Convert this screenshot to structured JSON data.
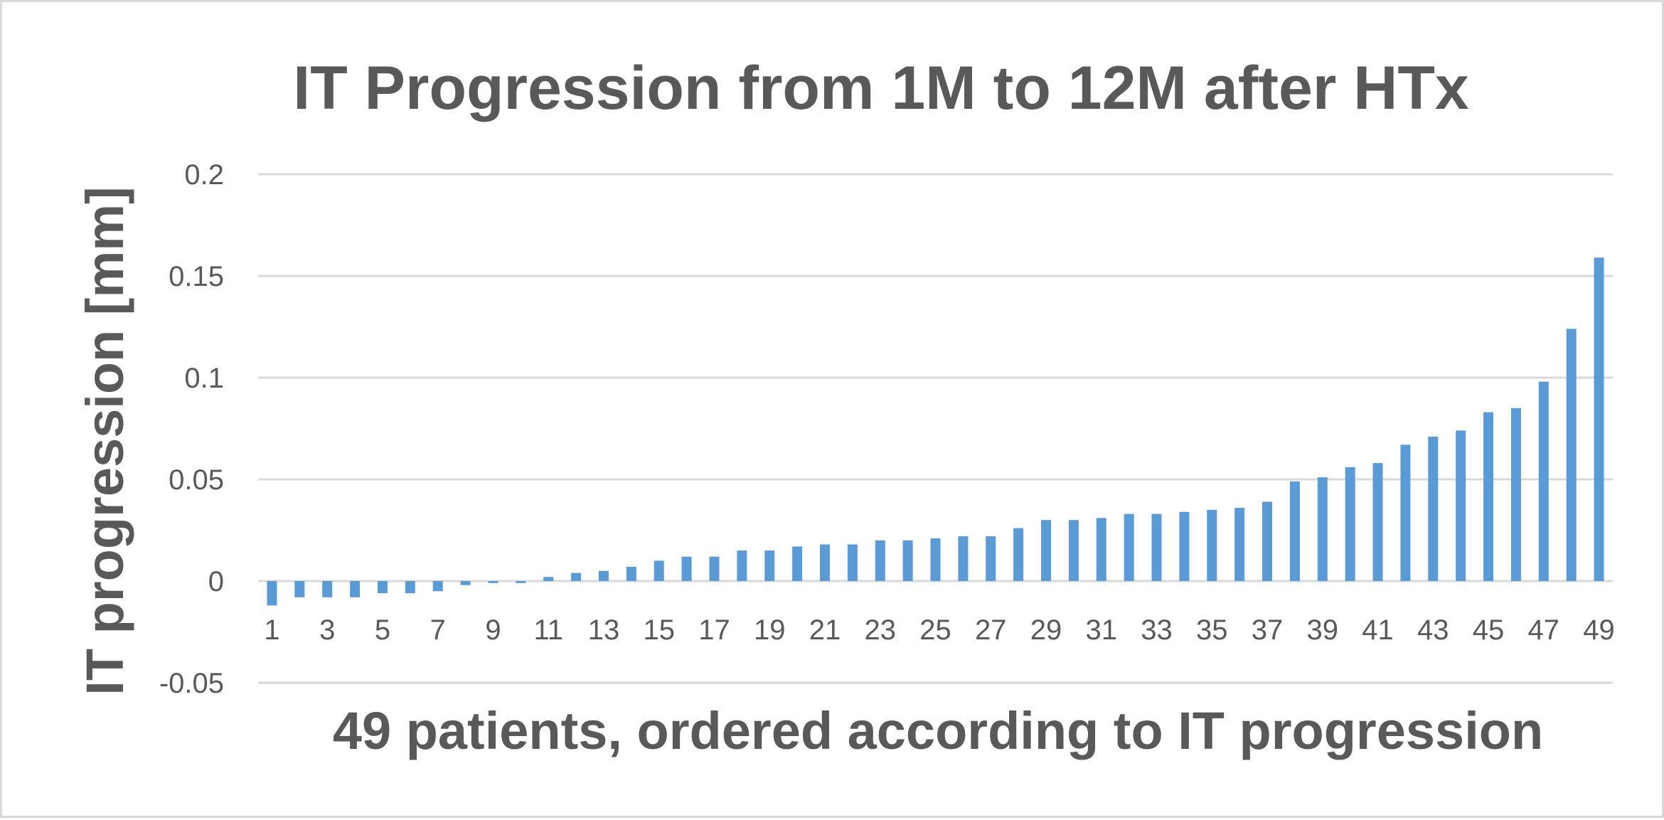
{
  "chart_data": {
    "type": "bar",
    "title": "IT  Progression from 1M to 12M after HTx",
    "xlabel": "49 patients, ordered according to IT progression",
    "ylabel": "IT progression [mm]",
    "ylim": [
      -0.05,
      0.2
    ],
    "yticks": [
      0.2,
      0.15,
      0.1,
      0.05,
      0,
      -0.05
    ],
    "ytick_labels": [
      "0.2",
      "0.15",
      "0.1",
      "0.05",
      "0",
      "-0.05"
    ],
    "grid": true,
    "legend": "none",
    "bar_color": "#5b9bd5",
    "categories": [
      "1",
      "2",
      "3",
      "4",
      "5",
      "6",
      "7",
      "8",
      "9",
      "10",
      "11",
      "12",
      "13",
      "14",
      "15",
      "16",
      "17",
      "18",
      "19",
      "20",
      "21",
      "22",
      "23",
      "24",
      "25",
      "26",
      "27",
      "28",
      "29",
      "30",
      "31",
      "32",
      "33",
      "34",
      "35",
      "36",
      "37",
      "38",
      "39",
      "40",
      "41",
      "42",
      "43",
      "44",
      "45",
      "46",
      "47",
      "48",
      "49"
    ],
    "x_tick_labels": [
      "1",
      "3",
      "5",
      "7",
      "9",
      "11",
      "13",
      "15",
      "17",
      "19",
      "21",
      "23",
      "25",
      "27",
      "29",
      "31",
      "33",
      "35",
      "37",
      "39",
      "41",
      "43",
      "45",
      "47",
      "49"
    ],
    "values": [
      -0.012,
      -0.008,
      -0.008,
      -0.008,
      -0.006,
      -0.006,
      -0.005,
      -0.002,
      -0.001,
      -0.001,
      0.002,
      0.004,
      0.005,
      0.007,
      0.01,
      0.012,
      0.012,
      0.015,
      0.015,
      0.017,
      0.018,
      0.018,
      0.02,
      0.02,
      0.021,
      0.022,
      0.022,
      0.026,
      0.03,
      0.03,
      0.031,
      0.033,
      0.033,
      0.034,
      0.035,
      0.036,
      0.039,
      0.049,
      0.051,
      0.056,
      0.058,
      0.067,
      0.071,
      0.074,
      0.083,
      0.085,
      0.098,
      0.124,
      0.159
    ]
  }
}
